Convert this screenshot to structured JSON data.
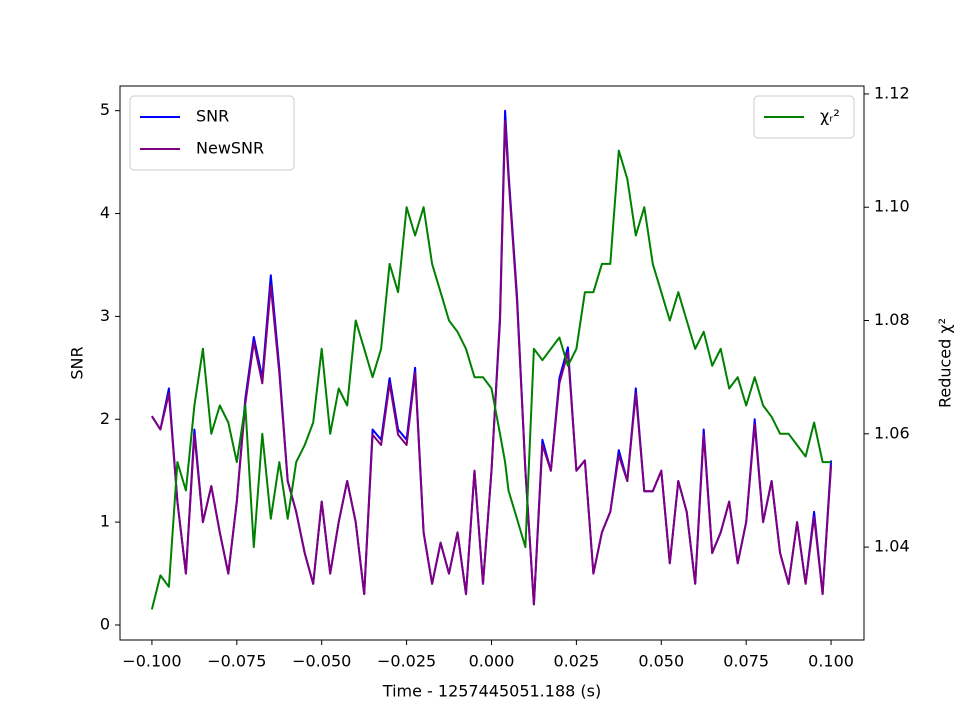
{
  "chart_data": {
    "type": "line",
    "xlabel": "Time - 1257445051.188 (s)",
    "ylabel": "SNR",
    "y2label": "Reduced χ²",
    "x": [
      -0.1,
      -0.0975,
      -0.095,
      -0.0925,
      -0.09,
      -0.0875,
      -0.085,
      -0.0825,
      -0.08,
      -0.0775,
      -0.075,
      -0.0725,
      -0.07,
      -0.0675,
      -0.065,
      -0.0625,
      -0.06,
      -0.0575,
      -0.055,
      -0.0525,
      -0.05,
      -0.0475,
      -0.045,
      -0.0425,
      -0.04,
      -0.0375,
      -0.035,
      -0.0325,
      -0.03,
      -0.0275,
      -0.025,
      -0.0225,
      -0.02,
      -0.0175,
      -0.015,
      -0.0125,
      -0.01,
      -0.0075,
      -0.005,
      -0.0025,
      0,
      0.0025,
      0.004,
      0.005,
      0.0075,
      0.01,
      0.0125,
      0.015,
      0.0175,
      0.02,
      0.0225,
      0.025,
      0.0275,
      0.03,
      0.0325,
      0.035,
      0.0375,
      0.04,
      0.0425,
      0.045,
      0.0475,
      0.05,
      0.0525,
      0.055,
      0.0575,
      0.06,
      0.0625,
      0.065,
      0.0675,
      0.07,
      0.0725,
      0.075,
      0.0775,
      0.08,
      0.0825,
      0.085,
      0.0875,
      0.09,
      0.0925,
      0.095,
      0.0975,
      0.1
    ],
    "series": [
      {
        "name": "SNR",
        "color": "#0000ff",
        "axis": "y",
        "values": [
          2.03,
          1.9,
          2.3,
          1.2,
          0.5,
          1.9,
          1.0,
          1.35,
          0.9,
          0.5,
          1.2,
          2.2,
          2.8,
          2.4,
          3.4,
          2.5,
          1.4,
          1.1,
          0.7,
          0.4,
          1.2,
          0.5,
          1.0,
          1.4,
          1.0,
          0.3,
          1.9,
          1.8,
          2.4,
          1.9,
          1.8,
          2.5,
          0.9,
          0.4,
          0.8,
          0.5,
          0.9,
          0.3,
          1.5,
          0.4,
          1.5,
          3.0,
          5.0,
          4.4,
          3.2,
          1.5,
          0.2,
          1.8,
          1.5,
          2.4,
          2.7,
          1.5,
          1.6,
          0.5,
          0.9,
          1.1,
          1.7,
          1.4,
          2.3,
          1.3,
          1.3,
          1.5,
          0.6,
          1.4,
          1.1,
          0.4,
          1.9,
          0.7,
          0.9,
          1.2,
          0.6,
          1.0,
          2.0,
          1.0,
          1.4,
          0.7,
          0.4,
          1.0,
          0.4,
          1.1,
          0.3,
          1.6
        ]
      },
      {
        "name": "NewSNR",
        "color": "#800080",
        "axis": "y",
        "values": [
          2.03,
          1.9,
          2.25,
          1.2,
          0.5,
          1.85,
          1.0,
          1.35,
          0.9,
          0.5,
          1.2,
          2.15,
          2.75,
          2.35,
          3.3,
          2.45,
          1.4,
          1.1,
          0.7,
          0.4,
          1.2,
          0.5,
          1.0,
          1.4,
          1.0,
          0.3,
          1.85,
          1.75,
          2.35,
          1.85,
          1.75,
          2.45,
          0.9,
          0.4,
          0.8,
          0.5,
          0.9,
          0.3,
          1.5,
          0.4,
          1.5,
          2.95,
          4.9,
          4.35,
          3.15,
          1.5,
          0.2,
          1.75,
          1.5,
          2.35,
          2.65,
          1.5,
          1.6,
          0.5,
          0.9,
          1.1,
          1.65,
          1.4,
          2.25,
          1.3,
          1.3,
          1.5,
          0.6,
          1.4,
          1.1,
          0.4,
          1.85,
          0.7,
          0.9,
          1.2,
          0.6,
          1.0,
          1.95,
          1.0,
          1.4,
          0.7,
          0.4,
          1.0,
          0.4,
          1.05,
          0.3,
          1.55
        ]
      },
      {
        "name": "χᵣ²",
        "color": "#008000",
        "axis": "y2",
        "values": [
          1.029,
          1.035,
          1.033,
          1.055,
          1.05,
          1.065,
          1.075,
          1.06,
          1.065,
          1.062,
          1.055,
          1.065,
          1.04,
          1.06,
          1.045,
          1.055,
          1.045,
          1.055,
          1.058,
          1.062,
          1.075,
          1.06,
          1.068,
          1.065,
          1.08,
          1.075,
          1.07,
          1.075,
          1.09,
          1.085,
          1.1,
          1.095,
          1.1,
          1.09,
          1.085,
          1.08,
          1.078,
          1.075,
          1.07,
          1.07,
          1.068,
          1.06,
          1.055,
          1.05,
          1.045,
          1.04,
          1.075,
          1.073,
          1.075,
          1.077,
          1.072,
          1.075,
          1.085,
          1.085,
          1.09,
          1.09,
          1.11,
          1.105,
          1.095,
          1.1,
          1.09,
          1.085,
          1.08,
          1.085,
          1.08,
          1.075,
          1.078,
          1.072,
          1.075,
          1.068,
          1.07,
          1.065,
          1.07,
          1.065,
          1.063,
          1.06,
          1.06,
          1.058,
          1.056,
          1.062,
          1.055,
          1.055
        ]
      }
    ],
    "xlim": [
      -0.1094,
      0.1097
    ],
    "ylim": [
      -0.146,
      5.24
    ],
    "y2lim": [
      1.0236,
      1.1214
    ],
    "xticks": [
      {
        "value": -0.1,
        "label": "−0.100"
      },
      {
        "value": -0.075,
        "label": "−0.075"
      },
      {
        "value": -0.05,
        "label": "−0.050"
      },
      {
        "value": -0.025,
        "label": "−0.025"
      },
      {
        "value": 0,
        "label": "0.000"
      },
      {
        "value": 0.025,
        "label": "0.025"
      },
      {
        "value": 0.05,
        "label": "0.050"
      },
      {
        "value": 0.075,
        "label": "0.075"
      },
      {
        "value": 0.1,
        "label": "0.100"
      }
    ],
    "yticks": [
      0,
      1,
      2,
      3,
      4,
      5
    ],
    "y2ticks": [
      1.04,
      1.06,
      1.08,
      {
        "value": 1.1,
        "label": "1.10"
      },
      1.12
    ],
    "legend": "upper left",
    "legend2": "upper right"
  }
}
